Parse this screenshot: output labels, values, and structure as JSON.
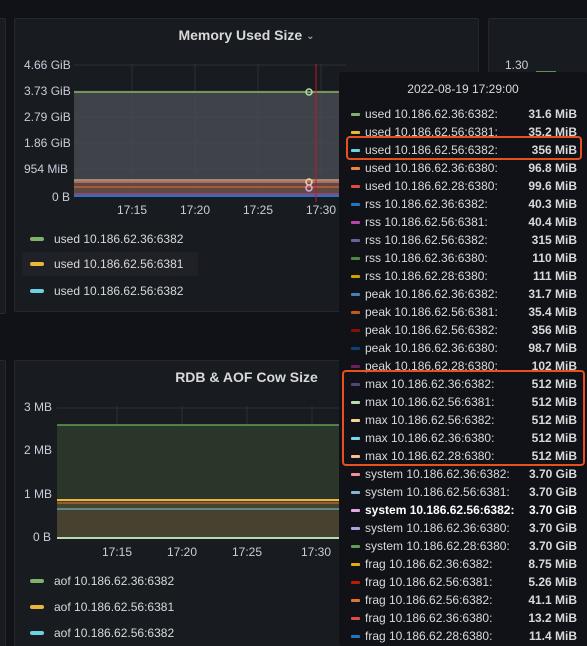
{
  "memory_panel": {
    "title": "Memory Used Size",
    "y_ticks": [
      "4.66 GiB",
      "3.73 GiB",
      "2.79 GiB",
      "1.86 GiB",
      "954 MiB",
      "0 B"
    ],
    "x_ticks": [
      "17:15",
      "17:20",
      "17:25",
      "17:30"
    ],
    "legend": [
      {
        "label": "used 10.186.62.36:6382",
        "color": "#7eb26d"
      },
      {
        "label": "used 10.186.62.56:6381",
        "color": "#eab839"
      },
      {
        "label": "used 10.186.62.56:6382",
        "color": "#6ed0e0"
      }
    ]
  },
  "rdb_panel": {
    "title": "RDB & AOF Cow Size",
    "y_ticks": [
      "3 MB",
      "2 MB",
      "1 MB",
      "0 B"
    ],
    "x_ticks": [
      "17:15",
      "17:20",
      "17:25",
      "17:30"
    ],
    "legend": [
      {
        "label": "aof 10.186.62.36:6382",
        "color": "#7eb26d"
      },
      {
        "label": "aof 10.186.62.56:6381",
        "color": "#eab839"
      },
      {
        "label": "aof 10.186.62.56:6382",
        "color": "#6ed0e0"
      }
    ]
  },
  "right_panel": {
    "y_tick": "1.30"
  },
  "tooltip": {
    "time": "2022-08-19 17:29:00",
    "rows": [
      {
        "label": "used 10.186.62.36:6382:",
        "value": "31.6 MiB",
        "color": "#7eb26d",
        "bold": false
      },
      {
        "label": "used 10.186.62.56:6381:",
        "value": "35.2 MiB",
        "color": "#eab839",
        "bold": false
      },
      {
        "label": "used 10.186.62.56:6382:",
        "value": "356 MiB",
        "color": "#6ed0e0",
        "bold": false
      },
      {
        "label": "used 10.186.62.36:6380:",
        "value": "96.8 MiB",
        "color": "#ef843c",
        "bold": false
      },
      {
        "label": "used 10.186.62.28:6380:",
        "value": "99.6 MiB",
        "color": "#e24d42",
        "bold": false
      },
      {
        "label": "rss 10.186.62.36:6382:",
        "value": "40.3 MiB",
        "color": "#1f78c1",
        "bold": false
      },
      {
        "label": "rss 10.186.62.56:6381:",
        "value": "40.4 MiB",
        "color": "#ba43a9",
        "bold": false
      },
      {
        "label": "rss 10.186.62.56:6382:",
        "value": "315 MiB",
        "color": "#705da0",
        "bold": false
      },
      {
        "label": "rss 10.186.62.36:6380:",
        "value": "110 MiB",
        "color": "#508642",
        "bold": false
      },
      {
        "label": "rss 10.186.62.28:6380:",
        "value": "111 MiB",
        "color": "#cca300",
        "bold": false
      },
      {
        "label": "peak 10.186.62.36:6382:",
        "value": "31.7 MiB",
        "color": "#447ebc",
        "bold": false
      },
      {
        "label": "peak 10.186.62.56:6381:",
        "value": "35.4 MiB",
        "color": "#c15c17",
        "bold": false
      },
      {
        "label": "peak 10.186.62.56:6382:",
        "value": "356 MiB",
        "color": "#890f02",
        "bold": false
      },
      {
        "label": "peak 10.186.62.36:6380:",
        "value": "98.7 MiB",
        "color": "#0a437c",
        "bold": false
      },
      {
        "label": "peak 10.186.62.28:6380:",
        "value": "102 MiB",
        "color": "#6d1f62",
        "bold": false
      },
      {
        "label": "max 10.186.62.36:6382:",
        "value": "512 MiB",
        "color": "#584477",
        "bold": false
      },
      {
        "label": "max 10.186.62.56:6381:",
        "value": "512 MiB",
        "color": "#b7dbab",
        "bold": false
      },
      {
        "label": "max 10.186.62.56:6382:",
        "value": "512 MiB",
        "color": "#f4d598",
        "bold": false
      },
      {
        "label": "max 10.186.62.36:6380:",
        "value": "512 MiB",
        "color": "#70dbed",
        "bold": false
      },
      {
        "label": "max 10.186.62.28:6380:",
        "value": "512 MiB",
        "color": "#f9ba8f",
        "bold": false
      },
      {
        "label": "system 10.186.62.36:6382:",
        "value": "3.70 GiB",
        "color": "#f29191",
        "bold": false
      },
      {
        "label": "system 10.186.62.56:6381:",
        "value": "3.70 GiB",
        "color": "#82b5d8",
        "bold": false
      },
      {
        "label": "system 10.186.62.56:6382:",
        "value": "3.70 GiB",
        "color": "#e5a8e2",
        "bold": true
      },
      {
        "label": "system 10.186.62.36:6380:",
        "value": "3.70 GiB",
        "color": "#aea2e0",
        "bold": false
      },
      {
        "label": "system 10.186.62.28:6380:",
        "value": "3.70 GiB",
        "color": "#629e51",
        "bold": false
      },
      {
        "label": "frag 10.186.62.36:6382:",
        "value": "8.75 MiB",
        "color": "#e5ac0e",
        "bold": false
      },
      {
        "label": "frag 10.186.62.56:6381:",
        "value": "5.26 MiB",
        "color": "#bf1b00",
        "bold": false
      },
      {
        "label": "frag 10.186.62.56:6382:",
        "value": "41.1 MiB",
        "color": "#e0752d",
        "bold": false
      },
      {
        "label": "frag 10.186.62.36:6380:",
        "value": "13.2 MiB",
        "color": "#e24d42",
        "bold": false
      },
      {
        "label": "frag 10.186.62.28:6380:",
        "value": "11.4 MiB",
        "color": "#1f78c1",
        "bold": false
      }
    ]
  }
}
